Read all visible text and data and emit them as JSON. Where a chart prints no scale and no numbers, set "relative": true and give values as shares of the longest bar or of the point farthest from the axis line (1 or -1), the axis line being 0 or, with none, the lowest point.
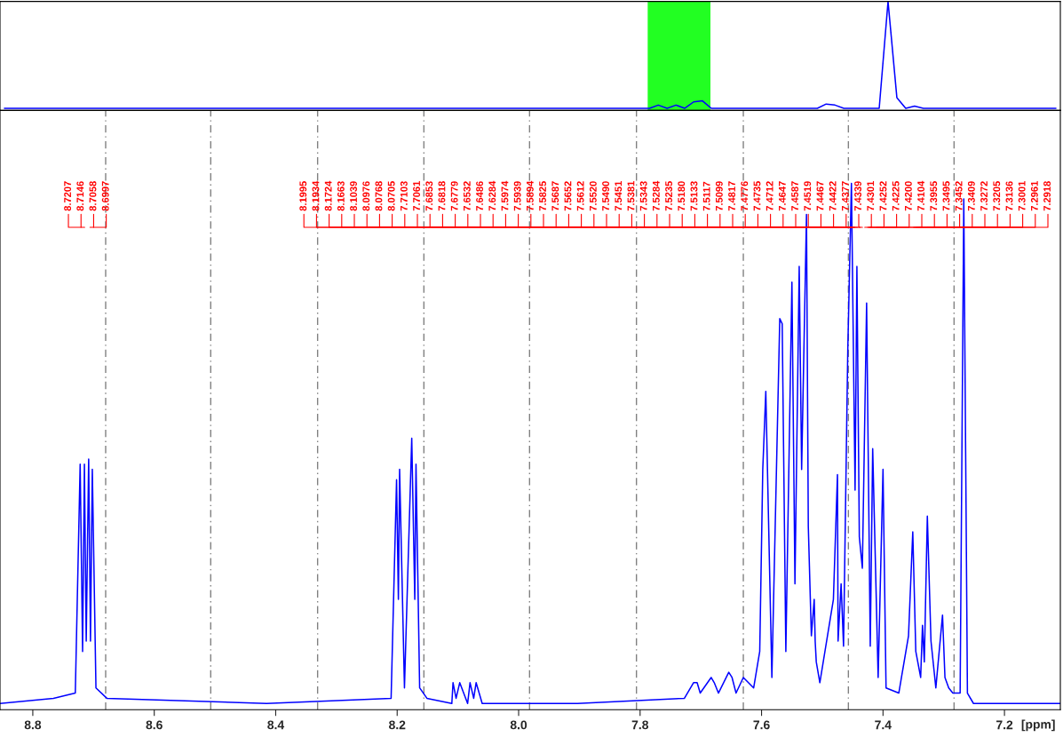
{
  "chart_data": [
    {
      "type": "line",
      "relative": true,
      "categories": [
        null,
        null,
        null,
        null,
        null,
        null,
        null,
        null,
        null,
        null,
        null,
        null,
        null,
        null,
        null,
        null,
        null,
        null,
        null,
        null,
        null,
        null,
        null,
        null,
        null,
        null,
        null,
        null,
        null,
        null,
        null,
        null,
        null,
        null,
        null,
        null,
        null,
        null,
        null,
        null,
        null,
        null,
        null,
        null,
        null,
        null,
        null,
        null,
        null,
        null,
        null,
        null,
        null,
        null,
        null,
        null,
        null,
        null,
        null,
        null,
        null,
        null,
        null,
        null,
        null,
        null,
        null,
        null,
        null,
        null,
        null,
        null,
        null,
        null,
        null,
        null,
        null,
        null,
        null,
        null,
        null,
        null,
        null,
        null,
        null,
        null,
        null,
        null,
        null,
        null,
        null,
        null,
        null,
        null,
        null,
        null,
        null,
        null,
        null,
        null,
        null,
        null,
        null,
        null,
        null,
        null,
        null,
        null,
        null,
        null,
        null,
        null,
        null,
        null,
        null,
        null,
        null,
        null,
        null,
        null
      ],
      "series": [
        {
          "color": "#0000ff",
          "values": [
            0,
            0,
            0,
            0,
            0,
            0,
            0,
            0,
            0,
            0,
            0,
            0,
            0,
            0,
            0,
            0,
            0,
            0,
            0,
            0,
            0,
            0,
            0,
            0,
            0,
            0,
            0,
            0,
            0,
            0,
            0,
            0,
            0,
            0,
            0,
            0,
            0,
            0,
            0,
            0,
            0,
            0,
            0,
            0,
            0,
            0,
            0,
            0,
            0,
            0,
            0,
            0,
            0,
            0,
            0,
            0,
            0,
            0,
            0,
            0,
            0,
            0,
            0,
            0,
            0,
            0,
            0,
            0,
            0,
            0,
            0,
            0,
            0,
            0,
            0.03,
            0,
            0.03,
            0,
            0.06,
            0.07,
            0,
            0,
            0,
            0,
            0,
            0,
            0,
            0,
            0,
            0,
            0,
            0,
            0,
            0.04,
            0.03,
            0,
            0,
            0,
            0,
            0,
            1.0,
            0.1,
            0,
            0.02,
            0,
            0,
            0,
            0,
            0,
            0,
            0,
            0,
            0,
            0,
            0,
            0,
            0,
            0,
            0,
            0
          ]
        }
      ],
      "tick_labels": false,
      "grid": false
    },
    {
      "type": "line",
      "relative": true,
      "xlabel": "[ppm]",
      "xlim": [
        8.854,
        7.108
      ],
      "xticks": [
        8.8,
        8.6,
        8.4,
        8.2,
        {
          "value": 8.0,
          "label": "8.0"
        },
        7.8,
        7.6,
        7.4,
        7.2
      ],
      "tick_labels": "x",
      "grid": false,
      "x": [
        8.854,
        8.766,
        8.73,
        8.722,
        8.718,
        8.715,
        8.712,
        8.708,
        8.705,
        8.702,
        8.696,
        8.678,
        8.415,
        8.21,
        8.201,
        8.198,
        8.196,
        8.188,
        8.176,
        8.171,
        8.169,
        8.163,
        8.151,
        8.11,
        8.108,
        8.103,
        8.097,
        8.084,
        8.08,
        8.074,
        8.07,
        8.06,
        7.903,
        7.727,
        7.712,
        7.7061,
        7.701,
        7.683,
        7.6779,
        7.671,
        7.654,
        7.6486,
        7.642,
        7.63,
        7.613,
        7.603,
        7.598,
        7.593,
        7.583,
        7.57,
        7.566,
        7.56,
        7.55,
        7.545,
        7.538,
        7.534,
        7.526,
        7.523,
        7.518,
        7.5133,
        7.5117,
        7.5099,
        7.504,
        7.4817,
        7.475,
        7.474,
        7.469,
        7.465,
        7.458,
        7.452,
        7.446,
        7.443,
        7.439,
        7.434,
        7.427,
        7.421,
        7.417,
        7.408,
        7.4,
        7.395,
        7.374,
        7.358,
        7.351,
        7.346,
        7.338,
        7.335,
        7.332,
        7.327,
        7.321,
        7.313,
        7.302,
        7.298,
        7.2918,
        7.285,
        7.273,
        7.267,
        7.261,
        7.251,
        7.108
      ],
      "series": [
        {
          "color": "#0000ff",
          "values": [
            0.0,
            0.01,
            0.02,
            0.46,
            0.1,
            0.46,
            0.12,
            0.47,
            0.12,
            0.45,
            0.03,
            0.01,
            0.0,
            0.01,
            0.43,
            0.2,
            0.45,
            0.03,
            0.51,
            0.2,
            0.46,
            0.03,
            0.01,
            0.0,
            0.04,
            0.01,
            0.04,
            0.0,
            0.04,
            0.01,
            0.04,
            0.0,
            0.0,
            0.01,
            0.04,
            0.04,
            0.02,
            0.05,
            0.04,
            0.02,
            0.06,
            0.05,
            0.02,
            0.05,
            0.03,
            0.1,
            0.45,
            0.6,
            0.05,
            0.74,
            0.73,
            0.1,
            0.81,
            0.23,
            0.84,
            0.45,
            0.94,
            0.34,
            0.13,
            0.2,
            0.12,
            0.08,
            0.04,
            0.2,
            0.44,
            0.12,
            0.23,
            0.11,
            0.68,
            1.0,
            0.41,
            0.84,
            0.32,
            0.26,
            0.77,
            0.11,
            0.49,
            0.05,
            0.45,
            0.03,
            0.02,
            0.13,
            0.33,
            0.1,
            0.05,
            0.15,
            0.08,
            0.36,
            0.12,
            0.03,
            0.17,
            0.05,
            0.03,
            0.02,
            0.02,
            0.97,
            0.02,
            0.0,
            0.0
          ]
        }
      ],
      "ref_lines": [
        {
          "axis": "x",
          "value": 8.68,
          "color": "#808080",
          "line_style": "dashed"
        },
        {
          "axis": "x",
          "value": 8.507,
          "color": "#808080",
          "line_style": "dashed"
        },
        {
          "axis": "x",
          "value": 8.331,
          "color": "#808080",
          "line_style": "dashed"
        },
        {
          "axis": "x",
          "value": 8.156,
          "color": "#808080",
          "line_style": "dashed"
        },
        {
          "axis": "x",
          "value": 7.982,
          "color": "#808080",
          "line_style": "dashed"
        },
        {
          "axis": "x",
          "value": 7.806,
          "color": "#808080",
          "line_style": "dashed"
        },
        {
          "axis": "x",
          "value": 7.63,
          "color": "#808080",
          "line_style": "dashed"
        },
        {
          "axis": "x",
          "value": 7.457,
          "color": "#808080",
          "line_style": "dashed"
        },
        {
          "axis": "x",
          "value": 7.283,
          "color": "#808080",
          "line_style": "dashed"
        }
      ],
      "annotations": [
        {
          "text": "8.7207",
          "x": 8.7207
        },
        {
          "text": "8.7146",
          "x": 8.7146
        },
        {
          "text": "8.7058",
          "x": 8.7058
        },
        {
          "text": "8.6997",
          "x": 8.6997
        },
        {
          "text": "8.1995",
          "x": 8.1995
        },
        {
          "text": "8.1934",
          "x": 8.1934
        },
        {
          "text": "8.1724",
          "x": 8.1724
        },
        {
          "text": "8.1663",
          "x": 8.1663
        },
        {
          "text": "8.1039",
          "x": 8.1039
        },
        {
          "text": "8.0976",
          "x": 8.0976
        },
        {
          "text": "8.0768",
          "x": 8.0768
        },
        {
          "text": "8.0705",
          "x": 8.0705
        },
        {
          "text": "7.7103",
          "x": 7.7103
        },
        {
          "text": "7.7061",
          "x": 7.7061
        },
        {
          "text": "7.6853",
          "x": 7.6853
        },
        {
          "text": "7.6818",
          "x": 7.6818
        },
        {
          "text": "7.6779",
          "x": 7.6779
        },
        {
          "text": "7.6532",
          "x": 7.6532
        },
        {
          "text": "7.6486",
          "x": 7.6486
        },
        {
          "text": "7.6284",
          "x": 7.6284
        },
        {
          "text": "7.5974",
          "x": 7.5974
        },
        {
          "text": "7.5939",
          "x": 7.5939
        },
        {
          "text": "7.5894",
          "x": 7.5894
        },
        {
          "text": "7.5825",
          "x": 7.5825
        },
        {
          "text": "7.5687",
          "x": 7.5687
        },
        {
          "text": "7.5652",
          "x": 7.5652
        },
        {
          "text": "7.5612",
          "x": 7.5612
        },
        {
          "text": "7.5520",
          "x": 7.552
        },
        {
          "text": "7.5490",
          "x": 7.549
        },
        {
          "text": "7.5451",
          "x": 7.5451
        },
        {
          "text": "7.5381",
          "x": 7.5381
        },
        {
          "text": "7.5343",
          "x": 7.5343
        },
        {
          "text": "7.5284",
          "x": 7.5284
        },
        {
          "text": "7.5235",
          "x": 7.5235
        },
        {
          "text": "7.5180",
          "x": 7.518
        },
        {
          "text": "7.5133",
          "x": 7.5133
        },
        {
          "text": "7.5117",
          "x": 7.5117
        },
        {
          "text": "7.5099",
          "x": 7.5099
        },
        {
          "text": "7.4817",
          "x": 7.4817
        },
        {
          "text": "7.4776",
          "x": 7.4776
        },
        {
          "text": "7.4735",
          "x": 7.4735
        },
        {
          "text": "7.4712",
          "x": 7.4712
        },
        {
          "text": "7.4647",
          "x": 7.4647
        },
        {
          "text": "7.4587",
          "x": 7.4587
        },
        {
          "text": "7.4519",
          "x": 7.4519
        },
        {
          "text": "7.4467",
          "x": 7.4467
        },
        {
          "text": "7.4422",
          "x": 7.4422
        },
        {
          "text": "7.4377",
          "x": 7.4377
        },
        {
          "text": "7.4339",
          "x": 7.4339
        },
        {
          "text": "7.4301",
          "x": 7.4301
        },
        {
          "text": "7.4252",
          "x": 7.4252
        },
        {
          "text": "7.4225",
          "x": 7.4225
        },
        {
          "text": "7.4200",
          "x": 7.42
        },
        {
          "text": "7.4104",
          "x": 7.4104
        },
        {
          "text": "7.3955",
          "x": 7.3955
        },
        {
          "text": "7.3495",
          "x": 7.3495
        },
        {
          "text": "7.3452",
          "x": 7.3452
        },
        {
          "text": "7.3409",
          "x": 7.3409
        },
        {
          "text": "7.3272",
          "x": 7.3272
        },
        {
          "text": "7.3205",
          "x": 7.3205
        },
        {
          "text": "7.3136",
          "x": 7.3136
        },
        {
          "text": "7.3001",
          "x": 7.3001
        },
        {
          "text": "7.2961",
          "x": 7.2961
        },
        {
          "text": "7.2918",
          "x": 7.2918
        }
      ]
    }
  ]
}
